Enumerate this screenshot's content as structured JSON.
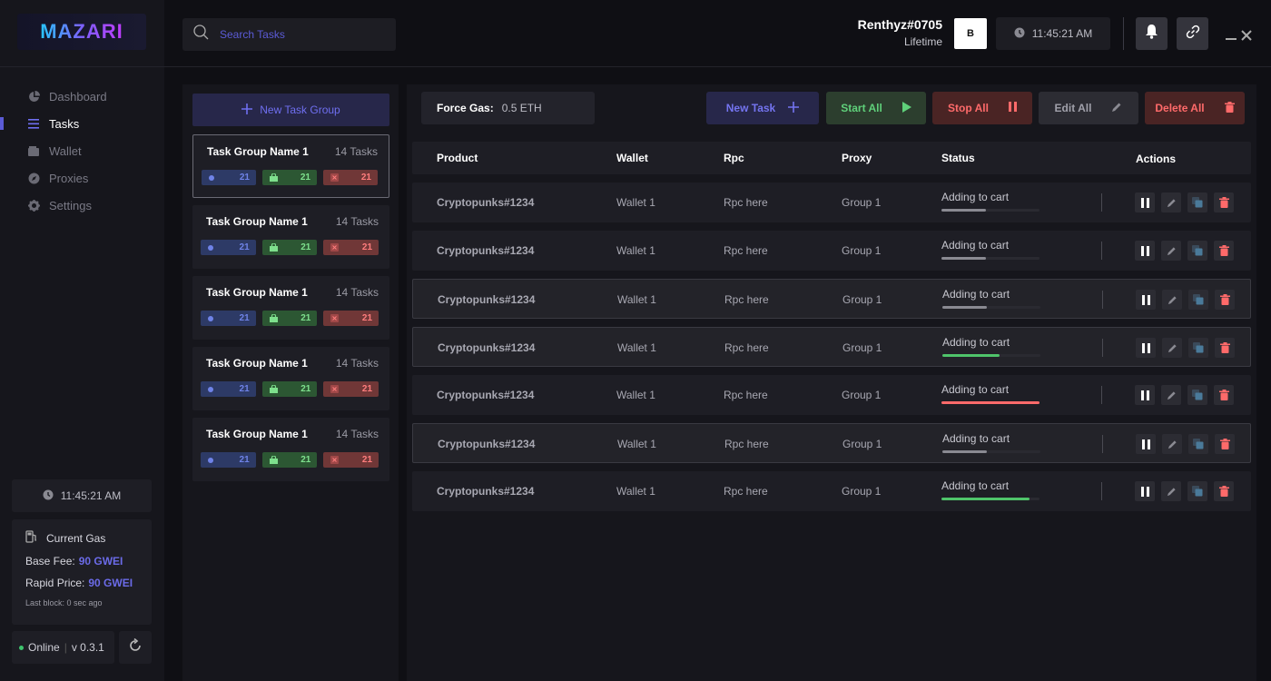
{
  "app": {
    "logo": "MAZARI"
  },
  "nav": [
    {
      "label": "Dashboard",
      "icon": "pie-chart-icon"
    },
    {
      "label": "Tasks",
      "icon": "list-icon",
      "active": true
    },
    {
      "label": "Wallet",
      "icon": "wallet-icon"
    },
    {
      "label": "Proxies",
      "icon": "compass-icon"
    },
    {
      "label": "Settings",
      "icon": "gear-icon"
    }
  ],
  "sidebar": {
    "clock": "11:45:21 AM",
    "gas": {
      "title": "Current Gas",
      "base_fee_label": "Base Fee:",
      "base_fee_value": "90 GWEI",
      "rapid_label": "Rapid Price:",
      "rapid_value": "90 GWEI",
      "last_block": "Last block: 0 sec ago"
    },
    "status": "Online",
    "version": "v 0.3.1"
  },
  "header": {
    "search_placeholder": "Search Tasks",
    "username": "Renthyz#0705",
    "plan": "Lifetime",
    "avatar_letter": "B",
    "clock": "11:45:21 AM"
  },
  "groups_panel": {
    "new_group_label": "New Task Group",
    "groups": [
      {
        "name": "Task Group Name 1",
        "count": "14 Tasks",
        "blue": "21",
        "green": "21",
        "red": "21",
        "selected": true
      },
      {
        "name": "Task Group Name 1",
        "count": "14 Tasks",
        "blue": "21",
        "green": "21",
        "red": "21"
      },
      {
        "name": "Task Group Name 1",
        "count": "14 Tasks",
        "blue": "21",
        "green": "21",
        "red": "21"
      },
      {
        "name": "Task Group Name 1",
        "count": "14 Tasks",
        "blue": "21",
        "green": "21",
        "red": "21"
      },
      {
        "name": "Task Group Name 1",
        "count": "14 Tasks",
        "blue": "21",
        "green": "21",
        "red": "21"
      }
    ]
  },
  "toolbar": {
    "force_gas_label": "Force Gas:",
    "force_gas_value": "0.5 ETH",
    "new_task": "New Task",
    "start_all": "Start All",
    "stop_all": "Stop All",
    "edit_all": "Edit All",
    "delete_all": "Delete All"
  },
  "table": {
    "headers": {
      "product": "Product",
      "wallet": "Wallet",
      "rpc": "Rpc",
      "proxy": "Proxy",
      "status": "Status",
      "actions": "Actions"
    },
    "rows": [
      {
        "product": "Cryptopunks#1234",
        "wallet": "Wallet 1",
        "rpc": "Rpc here",
        "proxy": "Group 1",
        "status": "Adding to cart",
        "progress": 0.45,
        "color": "#8a8a92",
        "highlight": false
      },
      {
        "product": "Cryptopunks#1234",
        "wallet": "Wallet 1",
        "rpc": "Rpc here",
        "proxy": "Group 1",
        "status": "Adding to cart",
        "progress": 0.45,
        "color": "#8a8a92",
        "highlight": false
      },
      {
        "product": "Cryptopunks#1234",
        "wallet": "Wallet 1",
        "rpc": "Rpc here",
        "proxy": "Group 1",
        "status": "Adding to cart",
        "progress": 0.45,
        "color": "#8a8a92",
        "highlight": true
      },
      {
        "product": "Cryptopunks#1234",
        "wallet": "Wallet 1",
        "rpc": "Rpc here",
        "proxy": "Group 1",
        "status": "Adding to cart",
        "progress": 0.58,
        "color": "#4fc46a",
        "highlight": true
      },
      {
        "product": "Cryptopunks#1234",
        "wallet": "Wallet 1",
        "rpc": "Rpc here",
        "proxy": "Group 1",
        "status": "Adding to cart",
        "progress": 1.0,
        "color": "#ff6a6a",
        "highlight": false
      },
      {
        "product": "Cryptopunks#1234",
        "wallet": "Wallet 1",
        "rpc": "Rpc here",
        "proxy": "Group 1",
        "status": "Adding to cart",
        "progress": 0.45,
        "color": "#8a8a92",
        "highlight": true
      },
      {
        "product": "Cryptopunks#1234",
        "wallet": "Wallet 1",
        "rpc": "Rpc here",
        "proxy": "Group 1",
        "status": "Adding to cart",
        "progress": 0.9,
        "color": "#4fc46a",
        "highlight": false
      }
    ]
  }
}
